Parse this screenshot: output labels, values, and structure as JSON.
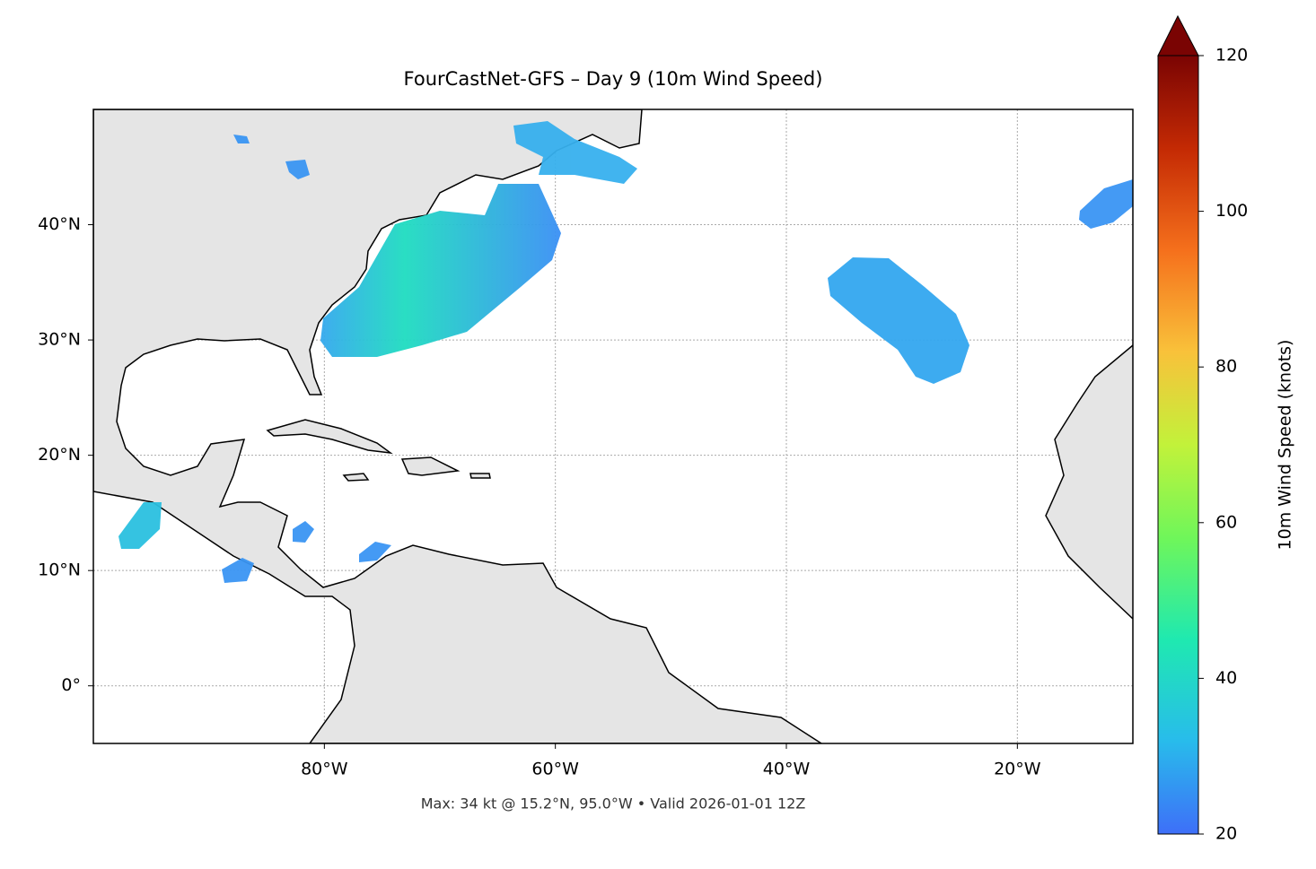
{
  "map": {
    "title": "FourCastNet-GFS – Day 9 (10m Wind Speed)",
    "note": "Max: 34 kt @ 15.2°N, 95.0°W • Valid 2026-01-01 12Z",
    "xlim": [
      -100,
      -10
    ],
    "ylim": [
      -5,
      50
    ],
    "xticks": [
      {
        "value": -80,
        "label": "80°W"
      },
      {
        "value": -60,
        "label": "60°W"
      },
      {
        "value": -40,
        "label": "40°W"
      },
      {
        "value": -20,
        "label": "20°W"
      }
    ],
    "yticks": [
      {
        "value": 0,
        "label": "0°"
      },
      {
        "value": 10,
        "label": "10°N"
      },
      {
        "value": 20,
        "label": "20°N"
      },
      {
        "value": 30,
        "label": "30°N"
      },
      {
        "value": 40,
        "label": "40°N"
      }
    ],
    "grid": true,
    "colorbar": {
      "label": "10m Wind Speed (knots)",
      "lim": [
        20,
        120
      ],
      "ticks": [
        20,
        40,
        60,
        80,
        100,
        120
      ],
      "extend": "max"
    }
  }
}
